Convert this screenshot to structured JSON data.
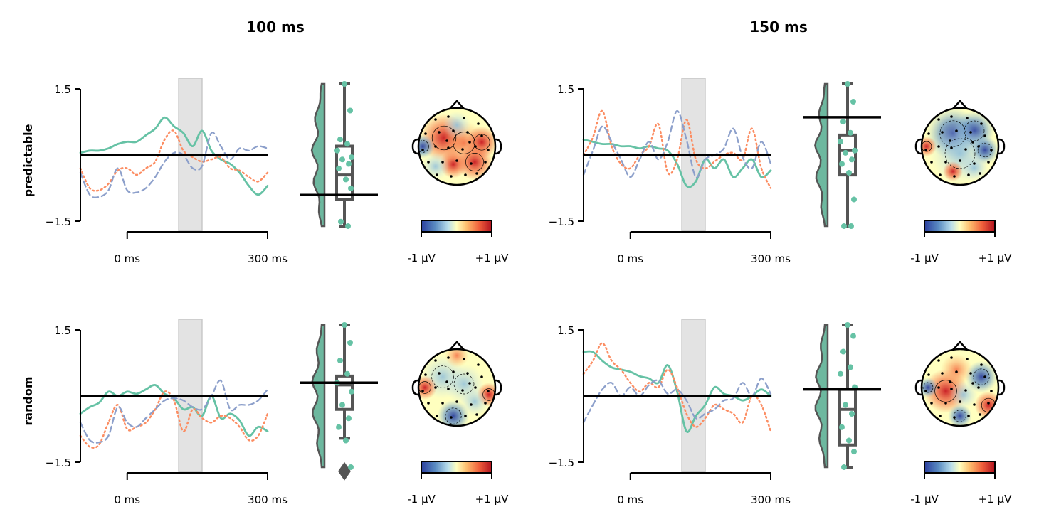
{
  "figure": {
    "columns": [
      "100 ms",
      "150 ms"
    ],
    "rows": [
      "predictable",
      "random"
    ]
  },
  "colors": {
    "series_solid": "#66c2a5",
    "series_dotted": "#fc8d62",
    "series_dashed": "#8da0cb",
    "shade": "#e3e3e3",
    "box": "#555555",
    "violin": "#6db89f",
    "points": "#66c2a5",
    "cmap_low": "#2b3f9e",
    "cmap_mid": "#ffffbf",
    "cmap_high": "#c7161f"
  },
  "chart_data": [
    {
      "type": "line",
      "column": "100 ms",
      "row": "predictable",
      "yticks": [
        "1.5",
        "−1.5"
      ],
      "xticks": [
        "0 ms",
        "300 ms"
      ],
      "ylim": [
        -1.5,
        1.5
      ],
      "shade_ms": [
        110,
        160
      ],
      "series": [
        {
          "style": "solid",
          "x": [
            -100,
            -80,
            -60,
            -40,
            -20,
            0,
            20,
            40,
            60,
            80,
            100,
            120,
            140,
            160,
            180,
            200,
            220,
            240,
            260,
            280,
            300
          ],
          "y": [
            0.05,
            0.1,
            0.1,
            0.15,
            0.25,
            0.3,
            0.3,
            0.45,
            0.6,
            0.85,
            0.65,
            0.5,
            0.2,
            0.55,
            0.1,
            -0.1,
            -0.2,
            -0.4,
            -0.7,
            -0.9,
            -0.7
          ]
        },
        {
          "style": "dotted",
          "x": [
            -100,
            -80,
            -60,
            -40,
            -20,
            0,
            20,
            40,
            60,
            80,
            100,
            120,
            140,
            160,
            180,
            200,
            220,
            240,
            260,
            280,
            300
          ],
          "y": [
            -0.3,
            -0.75,
            -0.8,
            -0.65,
            -0.35,
            -0.3,
            -0.45,
            -0.3,
            -0.15,
            0.35,
            0.55,
            0.1,
            -0.05,
            -0.15,
            -0.1,
            -0.05,
            -0.3,
            -0.35,
            -0.5,
            -0.6,
            -0.4
          ]
        },
        {
          "style": "dashed",
          "x": [
            -100,
            -80,
            -60,
            -40,
            -20,
            0,
            20,
            40,
            60,
            80,
            100,
            120,
            140,
            160,
            180,
            200,
            220,
            240,
            260,
            280,
            300
          ],
          "y": [
            -0.4,
            -0.9,
            -0.95,
            -0.8,
            -0.3,
            -0.8,
            -0.85,
            -0.75,
            -0.5,
            -0.15,
            0.05,
            0.0,
            -0.3,
            -0.25,
            0.5,
            0.2,
            -0.1,
            0.15,
            0.1,
            0.2,
            0.15
          ]
        }
      ],
      "distribution": {
        "points": [
          1.6,
          1.0,
          0.35,
          0.25,
          0.1,
          -0.05,
          -0.1,
          -0.2,
          -0.3,
          -0.55,
          -0.75,
          -1.5,
          -1.6
        ],
        "box": {
          "q1": -1.0,
          "median": -0.45,
          "q3": 0.2,
          "whisker_low": -1.6,
          "whisker_high": 1.6
        },
        "mean_line": -0.9
      },
      "colorbar": {
        "left": "-1 µV",
        "right": "+1 µV"
      }
    },
    {
      "type": "line",
      "column": "150 ms",
      "row": "predictable",
      "yticks": [
        "1.5",
        "−1.5"
      ],
      "xticks": [
        "0 ms",
        "300 ms"
      ],
      "ylim": [
        -1.5,
        1.5
      ],
      "shade_ms": [
        110,
        160
      ],
      "series": [
        {
          "style": "solid",
          "x": [
            -100,
            -80,
            -60,
            -40,
            -20,
            0,
            20,
            40,
            60,
            80,
            100,
            120,
            140,
            160,
            180,
            200,
            220,
            240,
            260,
            280,
            300
          ],
          "y": [
            0.35,
            0.3,
            0.25,
            0.25,
            0.2,
            0.2,
            0.15,
            0.2,
            0.15,
            0.1,
            -0.2,
            -0.7,
            -0.6,
            -0.1,
            -0.3,
            -0.1,
            -0.5,
            -0.3,
            -0.1,
            -0.5,
            -0.35
          ]
        },
        {
          "style": "dotted",
          "x": [
            -100,
            -80,
            -60,
            -40,
            -20,
            0,
            20,
            40,
            60,
            80,
            100,
            120,
            140,
            160,
            180,
            200,
            220,
            240,
            260,
            280,
            300
          ],
          "y": [
            0.0,
            0.4,
            1.0,
            0.2,
            -0.2,
            -0.3,
            0.0,
            0.2,
            0.7,
            -0.4,
            -0.1,
            0.8,
            -0.1,
            -0.3,
            -0.15,
            0.0,
            0.05,
            -0.1,
            0.6,
            -0.3,
            -0.75
          ]
        },
        {
          "style": "dashed",
          "x": [
            -100,
            -80,
            -60,
            -40,
            -20,
            0,
            20,
            40,
            60,
            80,
            100,
            120,
            140,
            160,
            180,
            200,
            220,
            240,
            260,
            280,
            300
          ],
          "y": [
            -0.45,
            0.1,
            0.65,
            0.3,
            -0.1,
            -0.5,
            -0.1,
            0.3,
            -0.1,
            0.3,
            1.0,
            0.35,
            -0.5,
            -0.1,
            0.0,
            0.15,
            0.6,
            -0.05,
            -0.3,
            0.3,
            -0.2
          ]
        }
      ],
      "distribution": {
        "points": [
          1.6,
          1.2,
          0.75,
          0.5,
          0.3,
          0.1,
          0.05,
          -0.1,
          -0.2,
          -0.4,
          -1.0,
          -1.6,
          -1.6
        ],
        "box": {
          "q1": -0.45,
          "median": 0.1,
          "q3": 0.45,
          "whisker_low": -1.6,
          "whisker_high": 1.6
        },
        "mean_line": 0.85
      },
      "colorbar": {
        "left": "-1 µV",
        "right": "+1 µV"
      }
    },
    {
      "type": "line",
      "column": "100 ms",
      "row": "random",
      "yticks": [
        "1.5",
        "−1.5"
      ],
      "xticks": [
        "0 ms",
        "300 ms"
      ],
      "ylim": [
        -1.5,
        1.5
      ],
      "shade_ms": [
        110,
        160
      ],
      "series": [
        {
          "style": "solid",
          "x": [
            -100,
            -80,
            -60,
            -40,
            -20,
            0,
            20,
            40,
            60,
            80,
            100,
            120,
            140,
            160,
            180,
            200,
            220,
            240,
            260,
            280,
            300
          ],
          "y": [
            -0.4,
            -0.25,
            -0.15,
            0.1,
            0.0,
            0.1,
            0.05,
            0.15,
            0.25,
            0.05,
            -0.05,
            -0.3,
            -0.25,
            -0.45,
            0.0,
            -0.5,
            -0.4,
            -0.55,
            -0.9,
            -0.7,
            -0.8
          ]
        },
        {
          "style": "dotted",
          "x": [
            -100,
            -80,
            -60,
            -40,
            -20,
            0,
            20,
            40,
            60,
            80,
            100,
            120,
            140,
            160,
            180,
            200,
            220,
            240,
            260,
            280,
            300
          ],
          "y": [
            -0.9,
            -1.15,
            -1.1,
            -0.6,
            -0.2,
            -0.75,
            -0.7,
            -0.6,
            -0.3,
            0.1,
            -0.1,
            -0.8,
            -0.3,
            -0.5,
            -0.6,
            -0.45,
            -0.5,
            -0.7,
            -1.0,
            -0.9,
            -0.4
          ]
        },
        {
          "style": "dashed",
          "x": [
            -100,
            -80,
            -60,
            -40,
            -20,
            0,
            20,
            40,
            60,
            80,
            100,
            120,
            140,
            160,
            180,
            200,
            220,
            240,
            260,
            280,
            300
          ],
          "y": [
            -0.6,
            -1.0,
            -1.05,
            -0.9,
            -0.25,
            -0.6,
            -0.7,
            -0.5,
            -0.3,
            -0.1,
            -0.05,
            -0.1,
            -0.25,
            -0.3,
            0.0,
            0.35,
            -0.3,
            -0.2,
            -0.2,
            -0.1,
            0.15
          ]
        }
      ],
      "distribution": {
        "points": [
          1.6,
          1.2,
          0.8,
          0.5,
          0.3,
          0.1,
          -0.2,
          -0.5,
          -0.7,
          -1.0,
          -1.6
        ],
        "box": {
          "q1": -0.3,
          "median": 0.25,
          "q3": 0.45,
          "whisker_low": -0.95,
          "whisker_high": 1.6,
          "outlier": -1.5
        },
        "mean_line": 0.3
      },
      "colorbar": {
        "left": "-1 µV",
        "right": "+1 µV"
      }
    },
    {
      "type": "line",
      "column": "150 ms",
      "row": "random",
      "yticks": [
        "1.5",
        "−1.5"
      ],
      "xticks": [
        "0 ms",
        "300 ms"
      ],
      "ylim": [
        -1.5,
        1.5
      ],
      "shade_ms": [
        110,
        160
      ],
      "series": [
        {
          "style": "solid",
          "x": [
            -100,
            -80,
            -60,
            -40,
            -20,
            0,
            20,
            40,
            60,
            80,
            100,
            120,
            140,
            160,
            180,
            200,
            220,
            240,
            260,
            280,
            300
          ],
          "y": [
            1.0,
            1.0,
            0.8,
            0.65,
            0.6,
            0.55,
            0.45,
            0.4,
            0.3,
            0.7,
            0.1,
            -0.8,
            -0.45,
            -0.2,
            0.2,
            0.05,
            0.0,
            -0.1,
            0.0,
            0.15,
            0.0
          ]
        },
        {
          "style": "dotted",
          "x": [
            -100,
            -80,
            -60,
            -40,
            -20,
            0,
            20,
            40,
            60,
            80,
            100,
            120,
            140,
            160,
            180,
            200,
            220,
            240,
            260,
            280,
            300
          ],
          "y": [
            0.5,
            0.8,
            1.2,
            0.8,
            0.6,
            0.3,
            0.1,
            0.3,
            0.2,
            0.6,
            0.2,
            -0.4,
            -0.7,
            -0.5,
            -0.2,
            -0.3,
            -0.4,
            -0.6,
            0.0,
            -0.2,
            -0.8
          ]
        },
        {
          "style": "dashed",
          "x": [
            -100,
            -80,
            -60,
            -40,
            -20,
            0,
            20,
            40,
            60,
            80,
            100,
            120,
            140,
            160,
            180,
            200,
            220,
            240,
            260,
            280,
            300
          ],
          "y": [
            -0.6,
            -0.2,
            0.15,
            0.3,
            0.0,
            0.2,
            0.0,
            0.25,
            0.35,
            0.05,
            0.15,
            -0.1,
            -0.5,
            -0.4,
            -0.3,
            -0.1,
            -0.05,
            0.3,
            0.0,
            0.4,
            0.05
          ]
        }
      ],
      "distribution": {
        "points": [
          1.6,
          1.35,
          1.0,
          0.65,
          0.5,
          0.2,
          -0.2,
          -0.4,
          -0.7,
          -1.0,
          -1.25,
          -1.6
        ],
        "box": {
          "q1": -1.1,
          "median": -0.3,
          "q3": 0.15,
          "whisker_low": -1.6,
          "whisker_high": 1.6
        },
        "mean_line": 0.15
      },
      "colorbar": {
        "left": "-1 µV",
        "right": "+1 µV"
      }
    }
  ]
}
